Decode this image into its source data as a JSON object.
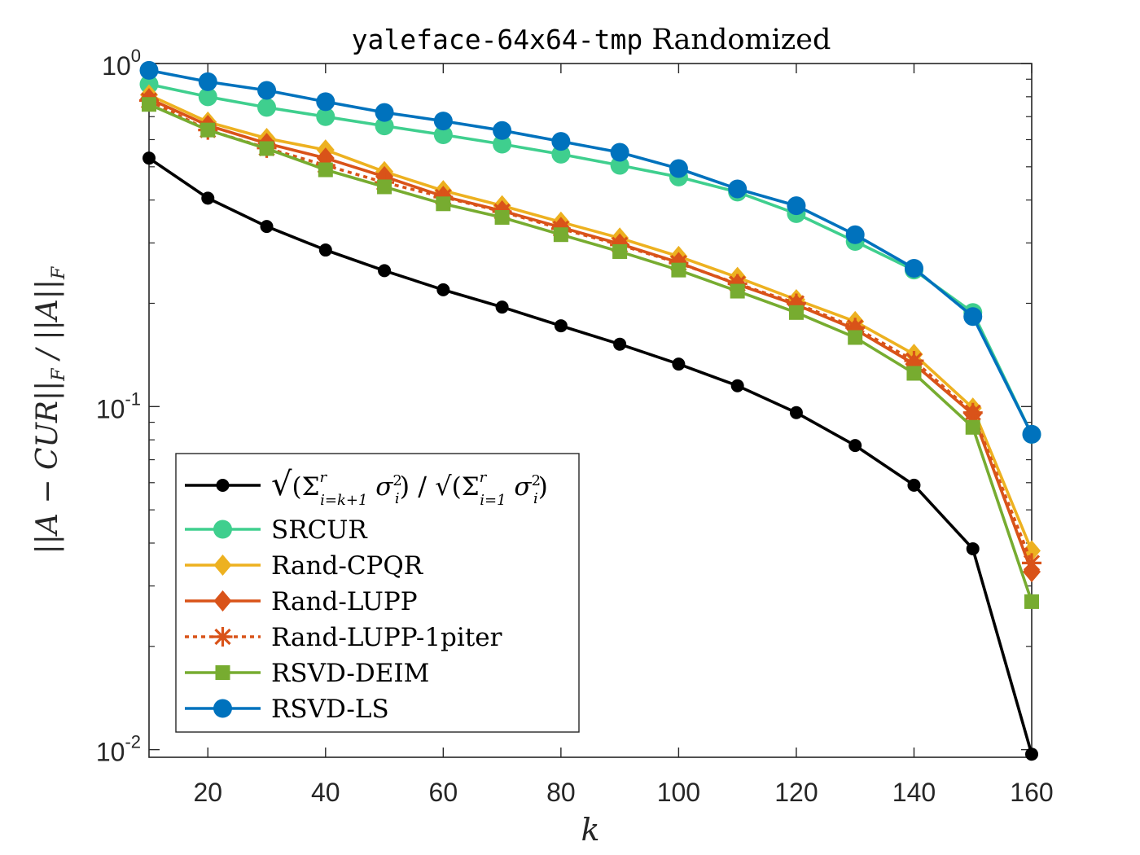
{
  "chart_data": {
    "type": "line",
    "title_mono": "yaleface-64x64-tmp",
    "title_rest": " Randomized",
    "xlabel": "k",
    "ylabel": "||A − CUR||F / ||A||F",
    "y_scale": "log",
    "xlim": [
      10,
      160
    ],
    "ylim": [
      0.0095,
      1.0
    ],
    "x_ticks": [
      20,
      40,
      60,
      80,
      100,
      120,
      140,
      160
    ],
    "y_ticks": [
      {
        "value": 1.0,
        "base": "10",
        "exp": "0"
      },
      {
        "value": 0.1,
        "base": "10",
        "exp": "-1"
      },
      {
        "value": 0.01,
        "base": "10",
        "exp": "-2"
      }
    ],
    "legend_position": "bottom-left",
    "x": [
      10,
      20,
      30,
      40,
      50,
      60,
      70,
      80,
      90,
      100,
      110,
      120,
      130,
      140,
      150,
      160
    ],
    "series": [
      {
        "name": "√(Σ_{i=k+1}^r σ_i²) / √(Σ_{i=1}^r σ_i²)",
        "color": "#000000",
        "marker": "dot",
        "dash": false,
        "values": [
          0.53,
          0.405,
          0.335,
          0.286,
          0.249,
          0.219,
          0.195,
          0.172,
          0.152,
          0.133,
          0.115,
          0.096,
          0.077,
          0.059,
          0.0385,
          0.0097
        ]
      },
      {
        "name": "SRCUR",
        "color": "#3FCF8E",
        "marker": "circle",
        "dash": false,
        "values": [
          0.87,
          0.8,
          0.745,
          0.7,
          0.658,
          0.62,
          0.582,
          0.544,
          0.505,
          0.467,
          0.422,
          0.365,
          0.303,
          0.25,
          0.188,
          0.083
        ]
      },
      {
        "name": "Rand-CPQR",
        "color": "#EDB120",
        "marker": "diamond",
        "dash": false,
        "values": [
          0.81,
          0.675,
          0.605,
          0.56,
          0.484,
          0.426,
          0.385,
          0.345,
          0.31,
          0.274,
          0.238,
          0.205,
          0.177,
          0.142,
          0.099,
          0.038
        ]
      },
      {
        "name": "Rand-LUPP",
        "color": "#D95319",
        "marker": "diamond",
        "dash": false,
        "values": [
          0.79,
          0.66,
          0.585,
          0.53,
          0.468,
          0.41,
          0.372,
          0.333,
          0.298,
          0.263,
          0.227,
          0.198,
          0.168,
          0.133,
          0.095,
          0.033
        ]
      },
      {
        "name": "Rand-LUPP-1piter",
        "color": "#D95319",
        "marker": "asterisk",
        "dash": true,
        "values": [
          0.78,
          0.64,
          0.567,
          0.505,
          0.45,
          0.408,
          0.37,
          0.33,
          0.296,
          0.262,
          0.228,
          0.2,
          0.17,
          0.136,
          0.096,
          0.035
        ]
      },
      {
        "name": "RSVD-DEIM",
        "color": "#77AC30",
        "marker": "square",
        "dash": false,
        "values": [
          0.76,
          0.64,
          0.565,
          0.49,
          0.437,
          0.39,
          0.356,
          0.317,
          0.283,
          0.25,
          0.217,
          0.188,
          0.159,
          0.125,
          0.087,
          0.027
        ]
      },
      {
        "name": "RSVD-LS",
        "color": "#0072BD",
        "marker": "circle",
        "dash": false,
        "values": [
          0.955,
          0.885,
          0.835,
          0.774,
          0.72,
          0.68,
          0.638,
          0.593,
          0.551,
          0.494,
          0.431,
          0.385,
          0.317,
          0.253,
          0.183,
          0.083
        ]
      }
    ]
  }
}
